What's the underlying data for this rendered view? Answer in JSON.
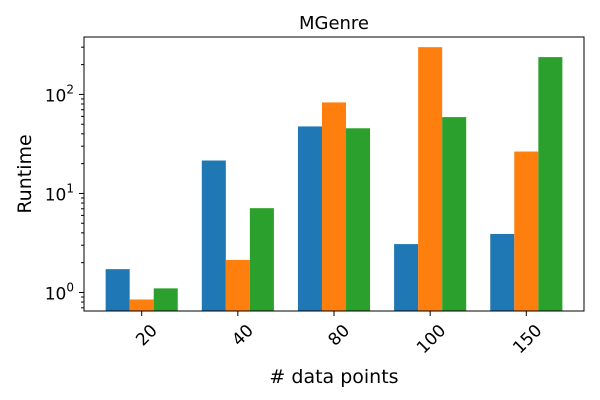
{
  "chart_data": {
    "type": "bar",
    "title": "MGenre",
    "xlabel": "# data points",
    "ylabel": "Runtime",
    "yscale": "log",
    "ylim": [
      0.65,
      380
    ],
    "categories": [
      "20",
      "40",
      "80",
      "100",
      "150"
    ],
    "series": [
      {
        "color": "#1f77b4",
        "values": [
          1.72,
          21.5,
          47.5,
          3.08,
          3.9
        ]
      },
      {
        "color": "#ff7f0e",
        "values": [
          0.85,
          2.13,
          83.0,
          300.0,
          26.5
        ]
      },
      {
        "color": "#2ca02c",
        "values": [
          1.1,
          7.1,
          45.5,
          59.0,
          238.0
        ]
      }
    ],
    "y_ticks": [
      1,
      10,
      100
    ],
    "y_tick_labels": [
      {
        "base": "10",
        "exp": "0"
      },
      {
        "base": "10",
        "exp": "1"
      },
      {
        "base": "10",
        "exp": "2"
      }
    ],
    "grid": false,
    "legend": "none"
  }
}
